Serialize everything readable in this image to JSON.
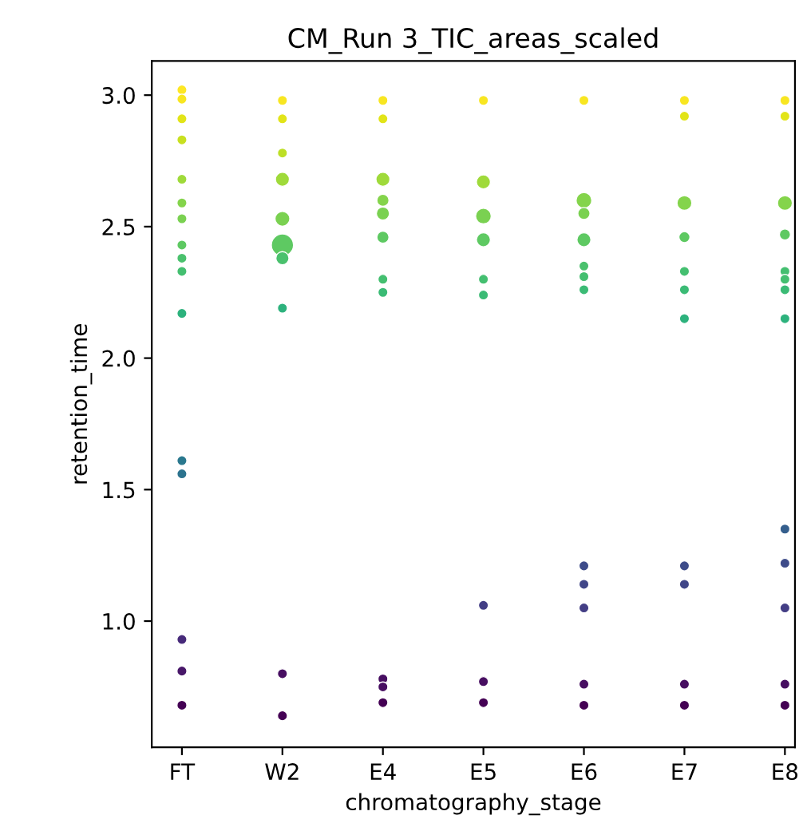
{
  "chart_data": {
    "type": "bubble",
    "title": "CM_Run 3_TIC_areas_scaled",
    "xlabel": "chromatography_stage",
    "ylabel": "retention_time",
    "categories": [
      "FT",
      "W2",
      "E4",
      "E5",
      "E6",
      "E7",
      "E8"
    ],
    "ylim": [
      0.52,
      3.13
    ],
    "yticks": [
      {
        "value": 1,
        "label": "1.0"
      },
      {
        "value": 1.5,
        "label": "1.5"
      },
      {
        "value": 2,
        "label": "2.0"
      },
      {
        "value": 2.5,
        "label": "2.5"
      },
      {
        "value": 3,
        "label": "3.0"
      }
    ],
    "grid": false,
    "marker": "circle",
    "series": [
      {
        "x": [
          "FT",
          "FT",
          "FT",
          "FT",
          "FT",
          "FT",
          "FT",
          "FT",
          "FT",
          "FT",
          "FT",
          "FT",
          "FT",
          "FT",
          "FT",
          "FT"
        ],
        "values": [
          3.02,
          2.985,
          2.91,
          2.83,
          2.68,
          2.59,
          2.53,
          2.43,
          2.38,
          2.33,
          2.17,
          1.61,
          1.56,
          0.93,
          0.81,
          0.68
        ],
        "sizes": [
          0.2,
          0.2,
          0.2,
          0.2,
          0.2,
          0.2,
          0.2,
          0.2,
          0.2,
          0.2,
          0.2,
          0.2,
          0.2,
          0.2,
          0.2,
          0.2
        ],
        "colors": [
          "#fde725",
          "#f8e621",
          "#e2e418",
          "#c8e020",
          "#9fda3a",
          "#84d44b",
          "#7ad151",
          "#5ec962",
          "#4ac16d",
          "#44bf70",
          "#2db27d",
          "#2a788e",
          "#2c738e",
          "#472a7a",
          "#481769",
          "#440154"
        ]
      },
      {
        "x": [
          "W2",
          "W2",
          "W2",
          "W2",
          "W2",
          "W2",
          "W2",
          "W2",
          "W2",
          "W2"
        ],
        "values": [
          2.98,
          2.91,
          2.78,
          2.68,
          2.53,
          2.43,
          2.38,
          2.19,
          0.8,
          0.64
        ],
        "sizes": [
          0.2,
          0.2,
          0.2,
          0.4,
          0.45,
          1,
          0.35,
          0.2,
          0.2,
          0.2
        ],
        "colors": [
          "#f8e621",
          "#e2e418",
          "#bddf26",
          "#9fda3a",
          "#7ad151",
          "#5ec962",
          "#4ac16d",
          "#2db27d",
          "#470e61",
          "#440154"
        ]
      },
      {
        "x": [
          "E4",
          "E4",
          "E4",
          "E4",
          "E4",
          "E4",
          "E4",
          "E4",
          "E4",
          "E4",
          "E4"
        ],
        "values": [
          2.98,
          2.91,
          2.68,
          2.6,
          2.55,
          2.46,
          2.3,
          2.25,
          0.78,
          0.75,
          0.69
        ],
        "sizes": [
          0.2,
          0.2,
          0.4,
          0.3,
          0.35,
          0.3,
          0.2,
          0.2,
          0.2,
          0.2,
          0.2
        ],
        "colors": [
          "#f8e621",
          "#e2e418",
          "#9fda3a",
          "#84d44b",
          "#7ad151",
          "#5ec962",
          "#44bf70",
          "#3bbb75",
          "#470e61",
          "#470e61",
          "#440154"
        ]
      },
      {
        "x": [
          "E5",
          "E5",
          "E5",
          "E5",
          "E5",
          "E5",
          "E5",
          "E5",
          "E5"
        ],
        "values": [
          2.98,
          2.67,
          2.54,
          2.45,
          2.3,
          2.24,
          1.06,
          0.77,
          0.69
        ],
        "sizes": [
          0.2,
          0.4,
          0.5,
          0.4,
          0.2,
          0.2,
          0.2,
          0.2,
          0.2
        ],
        "colors": [
          "#f8e621",
          "#9fda3a",
          "#7ad151",
          "#5ec962",
          "#44bf70",
          "#3bbb75",
          "#433e85",
          "#470e61",
          "#440154"
        ]
      },
      {
        "x": [
          "E6",
          "E6",
          "E6",
          "E6",
          "E6",
          "E6",
          "E6",
          "E6",
          "E6",
          "E6",
          "E6",
          "E6"
        ],
        "values": [
          2.98,
          2.6,
          2.55,
          2.45,
          2.35,
          2.31,
          2.26,
          1.21,
          1.14,
          1.05,
          0.76,
          0.68
        ],
        "sizes": [
          0.2,
          0.5,
          0.3,
          0.4,
          0.2,
          0.2,
          0.2,
          0.2,
          0.2,
          0.2,
          0.2,
          0.2
        ],
        "colors": [
          "#f8e621",
          "#84d44b",
          "#7ad151",
          "#5ec962",
          "#4ac16d",
          "#44bf70",
          "#3bbb75",
          "#3e4c8a",
          "#404688",
          "#433e85",
          "#470e61",
          "#440154"
        ]
      },
      {
        "x": [
          "E7",
          "E7",
          "E7",
          "E7",
          "E7",
          "E7",
          "E7",
          "E7",
          "E7",
          "E7",
          "E7"
        ],
        "values": [
          2.98,
          2.92,
          2.59,
          2.46,
          2.33,
          2.26,
          2.15,
          1.21,
          1.14,
          0.76,
          0.68
        ],
        "sizes": [
          0.2,
          0.2,
          0.45,
          0.25,
          0.2,
          0.2,
          0.2,
          0.2,
          0.2,
          0.2,
          0.2
        ],
        "colors": [
          "#f8e621",
          "#e2e418",
          "#84d44b",
          "#5ec962",
          "#44bf70",
          "#3bbb75",
          "#2db27d",
          "#3e4c8a",
          "#404688",
          "#470e61",
          "#440154"
        ]
      },
      {
        "x": [
          "E8",
          "E8",
          "E8",
          "E8",
          "E8",
          "E8",
          "E8",
          "E8",
          "E8",
          "E8",
          "E8",
          "E8",
          "E8"
        ],
        "values": [
          2.98,
          2.92,
          2.59,
          2.47,
          2.33,
          2.3,
          2.26,
          2.15,
          1.35,
          1.22,
          1.05,
          0.76,
          0.68
        ],
        "sizes": [
          0.2,
          0.2,
          0.45,
          0.25,
          0.2,
          0.2,
          0.2,
          0.2,
          0.2,
          0.2,
          0.2,
          0.2,
          0.2
        ],
        "colors": [
          "#f8e621",
          "#e2e418",
          "#84d44b",
          "#5ec962",
          "#44bf70",
          "#44bf70",
          "#3bbb75",
          "#2db27d",
          "#355f8d",
          "#3e4c8a",
          "#433e85",
          "#470e61",
          "#440154"
        ]
      }
    ]
  }
}
